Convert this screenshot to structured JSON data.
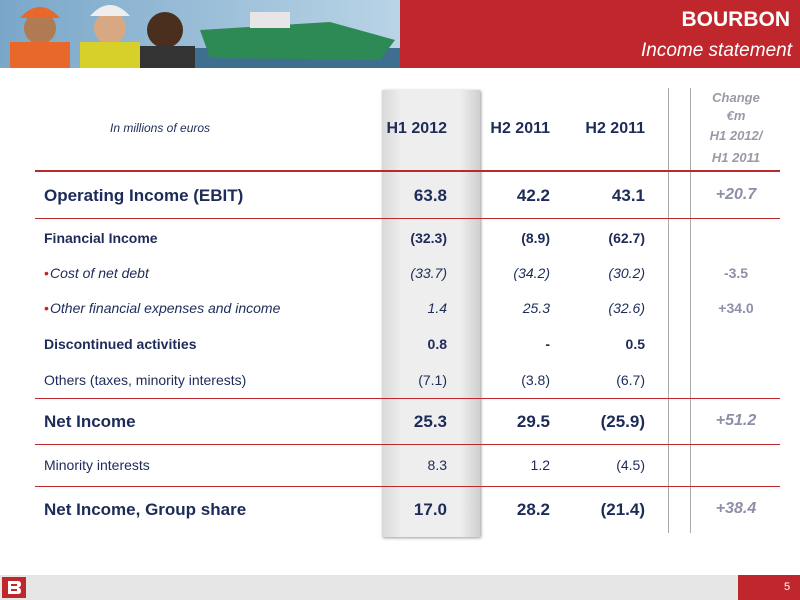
{
  "header": {
    "brand": "BOURBON",
    "subtitle": "Income statement"
  },
  "table": {
    "unit_note": "In millions of euros",
    "columns": [
      "H1 2012",
      "H2 2011",
      "H2 2011"
    ],
    "change_header": [
      "Change",
      "€m",
      "H1 2012/",
      "H1 2011"
    ],
    "rows": [
      {
        "label": "Operating Income (EBIT)",
        "style": "major",
        "values": [
          "63.8",
          "42.2",
          "43.1"
        ],
        "change": "+20.7"
      },
      {
        "label": "Financial Income",
        "style": "bold",
        "values": [
          "(32.3)",
          "(8.9)",
          "(62.7)"
        ]
      },
      {
        "bullet": "•",
        "label": "Cost of net debt",
        "style": "italic",
        "values": [
          "(33.7)",
          "(34.2)",
          "(30.2)"
        ],
        "change": "-3.5"
      },
      {
        "bullet": "•",
        "label": "Other financial expenses and income",
        "style": "italic",
        "values": [
          "1.4",
          "25.3",
          "(32.6)"
        ],
        "change": "+34.0"
      },
      {
        "label": "Discontinued activities",
        "style": "bold",
        "values": [
          "0.8",
          "-",
          "0.5"
        ]
      },
      {
        "label": "Others (taxes, minority interests)",
        "style": "plain",
        "values": [
          "(7.1)",
          "(3.8)",
          "(6.7)"
        ]
      },
      {
        "label": "Net Income",
        "style": "major",
        "values": [
          "25.3",
          "29.5",
          "(25.9)"
        ],
        "change": "+51.2"
      },
      {
        "label": "Minority interests",
        "style": "plain",
        "values": [
          "8.3",
          "1.2",
          "(4.5)"
        ]
      },
      {
        "label": "Net Income, Group share",
        "style": "major",
        "values": [
          "17.0",
          "28.2",
          "(21.4)"
        ],
        "change": "+38.4"
      }
    ]
  },
  "footer": {
    "page": "5"
  }
}
